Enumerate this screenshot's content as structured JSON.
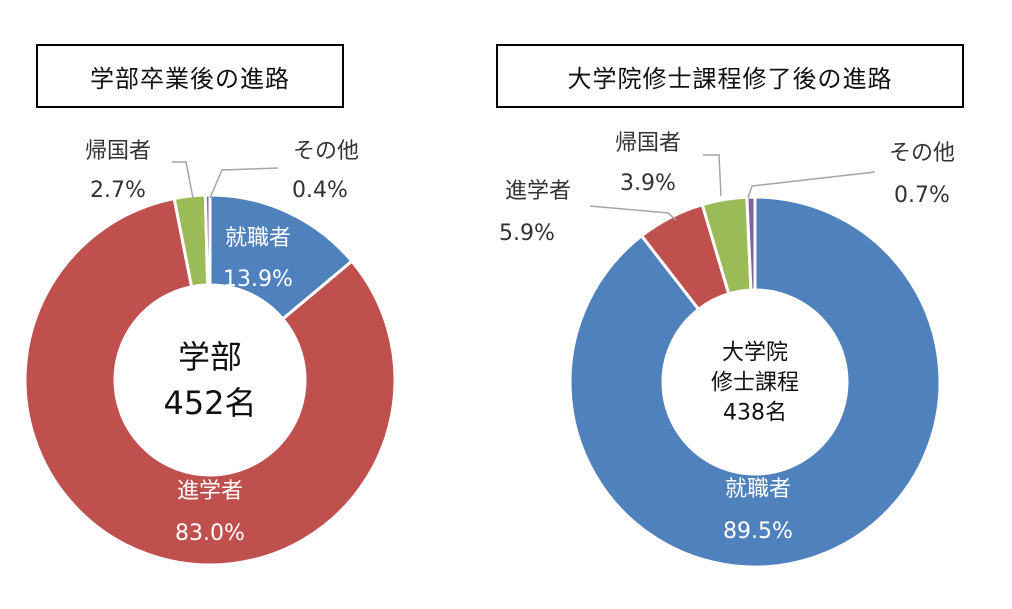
{
  "chart_data": [
    {
      "type": "pie",
      "title": "学部卒業後の進路",
      "center_label": [
        "学部",
        "452名"
      ],
      "slices": [
        {
          "name": "就職者",
          "value": 13.9,
          "label": "13.9%",
          "color": "#4f81bd"
        },
        {
          "name": "進学者",
          "value": 83.0,
          "label": "83.0%",
          "color": "#c0504d"
        },
        {
          "name": "帰国者",
          "value": 2.7,
          "label": "2.7%",
          "color": "#9bbb59"
        },
        {
          "name": "その他",
          "value": 0.4,
          "label": "0.4%",
          "color": "#8064a2"
        }
      ]
    },
    {
      "type": "pie",
      "title": "大学院修士課程修了後の進路",
      "center_label": [
        "大学院",
        "修士課程",
        "438名"
      ],
      "slices": [
        {
          "name": "就職者",
          "value": 89.5,
          "label": "89.5%",
          "color": "#4f81bd"
        },
        {
          "name": "進学者",
          "value": 5.9,
          "label": "5.9%",
          "color": "#c0504d"
        },
        {
          "name": "帰国者",
          "value": 3.9,
          "label": "3.9%",
          "color": "#9bbb59"
        },
        {
          "name": "その他",
          "value": 0.7,
          "label": "0.7%",
          "color": "#8064a2"
        }
      ]
    }
  ]
}
